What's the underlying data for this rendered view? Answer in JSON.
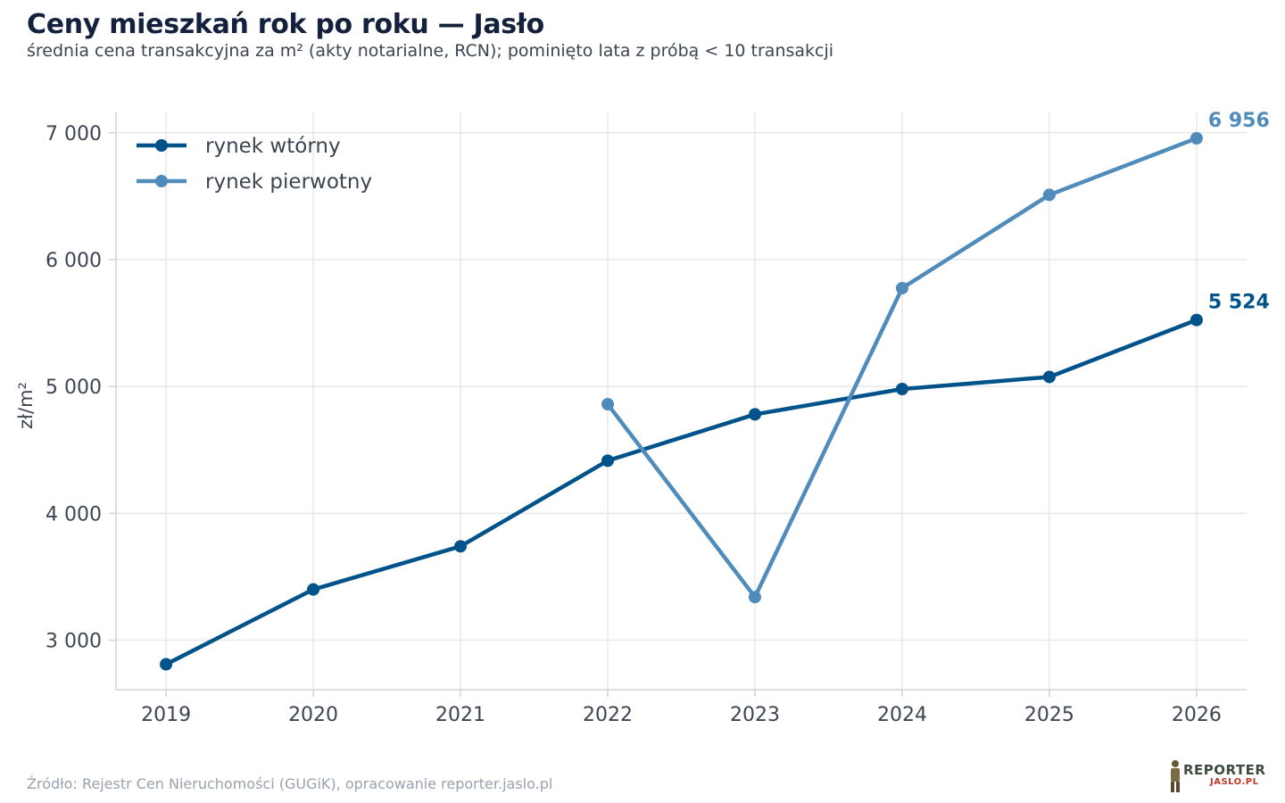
{
  "header": {
    "title": "Ceny mieszkań rok po roku — Jasło",
    "subtitle": "średnia cena transakcyjna za m² (akty notarialne, RCN); pominięto lata z próbą < 10 transakcji"
  },
  "footer": {
    "source": "Źródło: Rejestr Cen Nieruchomości (GUGiK), opracowanie reporter.jaslo.pl",
    "logo_line1": "REPORTER",
    "logo_line2": "JASLO.PL"
  },
  "chart_data": {
    "type": "line",
    "title": "Ceny mieszkań rok po roku — Jasło",
    "ylabel": "zł/m²",
    "xlabel": "",
    "x": [
      2019,
      2020,
      2021,
      2022,
      2023,
      2024,
      2025,
      2026
    ],
    "x_tick_labels": [
      "2019",
      "2020",
      "2021",
      "2022",
      "2023",
      "2024",
      "2025",
      "2026"
    ],
    "y_ticks": [
      3000,
      4000,
      5000,
      6000,
      7000
    ],
    "y_tick_labels": [
      "3 000",
      "4 000",
      "5 000",
      "6 000",
      "7 000"
    ],
    "xlim": [
      2018.66,
      2026.34
    ],
    "ylim": [
      2610,
      7160
    ],
    "grid": true,
    "legend_position": "top-left",
    "series": [
      {
        "name": "rynek wtórny",
        "color": "#00538a",
        "x": [
          2019,
          2020,
          2021,
          2022,
          2023,
          2024,
          2025,
          2026
        ],
        "values": [
          2810,
          3400,
          3740,
          4415,
          4780,
          4980,
          5075,
          5524
        ],
        "end_label": "5 524"
      },
      {
        "name": "rynek pierwotny",
        "color": "#4f8bbb",
        "x": [
          2022,
          2023,
          2024,
          2025,
          2026
        ],
        "values": [
          4860,
          3340,
          5775,
          6510,
          6956
        ],
        "end_label": "6 956"
      }
    ]
  }
}
